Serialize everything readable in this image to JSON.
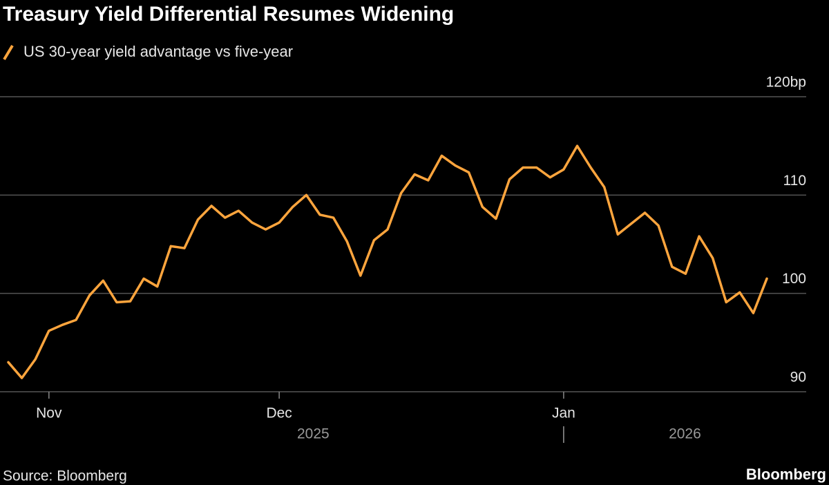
{
  "chart_data": {
    "type": "line",
    "title": "Treasury Yield Differential Resumes Widening",
    "source": "Source: Bloomberg",
    "brand": "Bloomberg",
    "categories": [
      null,
      null,
      null,
      "Nov",
      null,
      null,
      null,
      null,
      null,
      null,
      null,
      null,
      null,
      null,
      null,
      null,
      null,
      null,
      null,
      null,
      "Dec",
      null,
      null,
      null,
      null,
      null,
      null,
      null,
      null,
      null,
      null,
      null,
      null,
      null,
      null,
      null,
      null,
      null,
      null,
      null,
      null,
      "Jan",
      null,
      null,
      null,
      null,
      null,
      null,
      null,
      null,
      null,
      null,
      null,
      null,
      null,
      null,
      null
    ],
    "year_labels": [
      "2025",
      "2026"
    ],
    "series": [
      {
        "name": "US 30-year yield advantage vs five-year",
        "color": "#ffa53d",
        "values": [
          93.0,
          91.4,
          93.3,
          96.2,
          96.8,
          97.3,
          99.8,
          101.3,
          99.1,
          99.2,
          101.5,
          100.7,
          104.8,
          104.6,
          107.5,
          108.9,
          107.7,
          108.4,
          107.2,
          106.5,
          107.2,
          108.8,
          110.0,
          108.0,
          107.7,
          105.3,
          101.8,
          105.4,
          106.5,
          110.2,
          112.1,
          111.5,
          114.0,
          113.0,
          112.3,
          108.8,
          107.6,
          111.6,
          112.8,
          112.8,
          111.8,
          112.6,
          115.0,
          112.8,
          110.8,
          106.0,
          107.1,
          108.2,
          106.9,
          102.7,
          102.0,
          105.8,
          103.6,
          99.1,
          100.1,
          98.0,
          101.5
        ]
      }
    ],
    "ylim": [
      90,
      120
    ],
    "yticks": [
      90,
      100,
      110,
      {
        "value": 120,
        "label": "120bp"
      }
    ],
    "grid": true
  }
}
